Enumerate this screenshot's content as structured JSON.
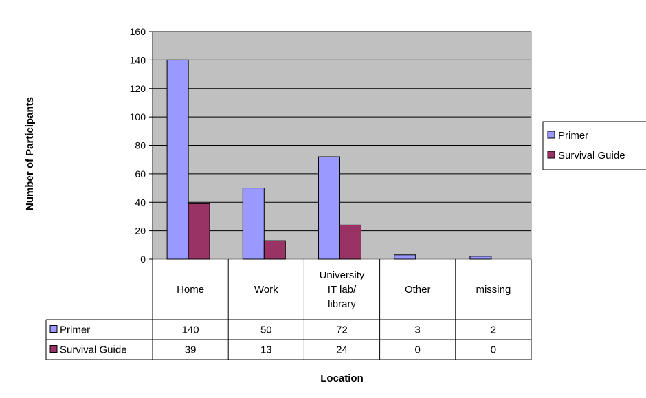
{
  "chart_data": {
    "type": "bar",
    "categories": [
      "Home",
      "Work",
      "University IT lab/ library",
      "Other",
      "missing"
    ],
    "category_lines": [
      [
        "Home"
      ],
      [
        "Work"
      ],
      [
        "University",
        "IT lab/",
        "library"
      ],
      [
        "Other"
      ],
      [
        "missing"
      ]
    ],
    "series": [
      {
        "name": "Primer",
        "values": [
          140,
          50,
          72,
          3,
          2
        ],
        "color": "#9999ff"
      },
      {
        "name": "Survival Guide",
        "values": [
          39,
          13,
          24,
          0,
          0
        ],
        "color": "#993366"
      }
    ],
    "title": "",
    "xlabel": "Location",
    "ylabel": "Number of Participants",
    "ylim": [
      0,
      160
    ],
    "yticks": [
      0,
      20,
      40,
      60,
      80,
      100,
      120,
      140,
      160
    ],
    "grid": true,
    "plot_background": "#c0c0c0",
    "legend": "right",
    "data_table": true
  }
}
